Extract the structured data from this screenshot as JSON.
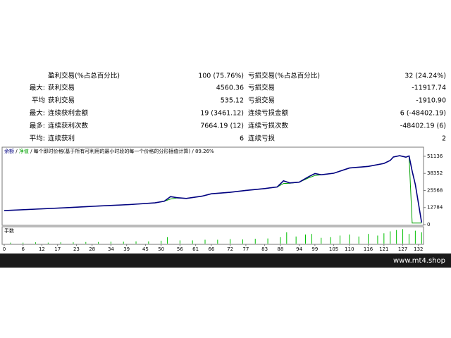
{
  "stats": {
    "rows": [
      {
        "win_name": "盈利交易(%占总百分比)",
        "win_value": "100 (75.76%)",
        "loss_name": "亏损交易(%占总百分比)",
        "loss_value": "32 (24.24%)"
      },
      {
        "label": "最大:",
        "win_name": "获利交易",
        "win_value": "4560.36",
        "loss_name": "亏损交易",
        "loss_value": "-11917.74"
      },
      {
        "label": "平均",
        "win_name": "获利交易",
        "win_value": "535.12",
        "loss_name": "亏损交易",
        "loss_value": "-1910.90"
      },
      {
        "label": "最大:",
        "win_name": "连续获利金额",
        "win_value": "19 (3461.12)",
        "loss_name": "连续亏损金额",
        "loss_value": "6 (-48402.19)"
      },
      {
        "label": "最多:",
        "win_name": "连续获利次数",
        "win_value": "7664.19 (12)",
        "loss_name": "连续亏损次数",
        "loss_value": "-48402.19 (6)"
      },
      {
        "label": "平均:",
        "win_name": "连续获利",
        "win_value": "6",
        "loss_name": "连续亏损",
        "loss_value": "2"
      }
    ]
  },
  "chart_data": [
    {
      "type": "line",
      "separator": "/",
      "subtitle": "每个即时价格(基于所有可利用的最小时段的每一个价格的分形插值计算)",
      "modeling_quality": "89.26%",
      "x": [
        0,
        10,
        20,
        30,
        40,
        48,
        51,
        53,
        55,
        58,
        63,
        66,
        72,
        77,
        83,
        87,
        89,
        91,
        94,
        97,
        99,
        101,
        105,
        110,
        116,
        121,
        123,
        124,
        126,
        128,
        129,
        130,
        131,
        133
      ],
      "series": [
        {
          "name": "余额",
          "color": "#000080",
          "values": [
            10500,
            11600,
            12700,
            13900,
            15000,
            16300,
            17500,
            21000,
            20200,
            19600,
            21300,
            23100,
            24200,
            25600,
            27000,
            28200,
            32800,
            31200,
            31800,
            35900,
            38200,
            37300,
            38500,
            42400,
            43600,
            45800,
            48000,
            50600,
            51600,
            50500,
            51400,
            40000,
            30000,
            1600
          ]
        },
        {
          "name": "净值",
          "color": "#00a000",
          "values": [
            10500,
            11600,
            12700,
            13900,
            15000,
            16300,
            17500,
            19200,
            20000,
            19600,
            21300,
            23100,
            24200,
            25600,
            27000,
            28200,
            30800,
            31000,
            31800,
            35000,
            36800,
            37300,
            38500,
            42400,
            43600,
            45800,
            48000,
            50600,
            51600,
            50500,
            51400,
            1200,
            1200,
            1200
          ]
        }
      ],
      "xlim": [
        0,
        133.5
      ],
      "ylim": [
        0,
        56400
      ],
      "yticks": [
        0,
        12784,
        25568,
        38352,
        51136
      ]
    },
    {
      "type": "bar",
      "title": "手数",
      "color": "#00c000",
      "x": [
        2,
        6,
        10,
        14,
        18,
        22,
        26,
        30,
        34,
        38,
        42,
        46,
        50,
        52,
        56,
        60,
        64,
        68,
        72,
        76,
        80,
        84,
        88,
        90,
        93,
        96,
        98,
        101,
        104,
        107,
        110,
        113,
        116,
        119,
        121,
        123,
        125,
        127,
        129,
        131,
        133
      ],
      "values": [
        0.03,
        0.03,
        0.04,
        0.03,
        0.04,
        0.04,
        0.05,
        0.05,
        0.06,
        0.06,
        0.07,
        0.07,
        0.09,
        0.2,
        0.1,
        0.1,
        0.12,
        0.12,
        0.14,
        0.13,
        0.15,
        0.16,
        0.2,
        0.35,
        0.22,
        0.28,
        0.3,
        0.18,
        0.2,
        0.25,
        0.28,
        0.22,
        0.3,
        0.25,
        0.32,
        0.38,
        0.42,
        0.45,
        0.3,
        0.4,
        0.35
      ],
      "xlim": [
        0,
        133.5
      ],
      "ylim": [
        0,
        0.5
      ],
      "xticks": [
        0,
        6,
        12,
        17,
        23,
        28,
        34,
        39,
        45,
        50,
        56,
        61,
        66,
        72,
        77,
        83,
        88,
        94,
        99,
        105,
        110,
        116,
        121,
        127,
        132
      ]
    }
  ],
  "footer": {
    "site": "www.mt4.shop"
  }
}
